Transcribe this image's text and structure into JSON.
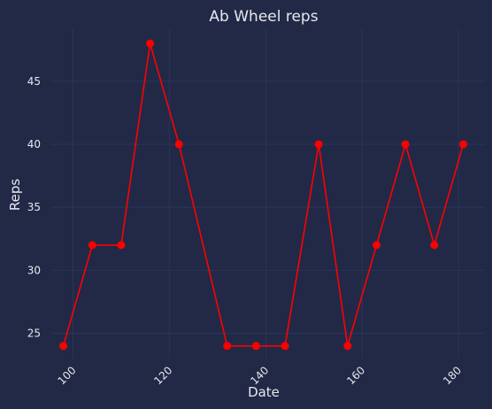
{
  "chart_data": {
    "type": "line",
    "title": "Ab Wheel reps",
    "xlabel": "Date",
    "ylabel": "Reps",
    "xlim": [
      95.5,
      185.5
    ],
    "ylim": [
      23,
      49.2
    ],
    "x_ticks": [
      100,
      120,
      140,
      160,
      180
    ],
    "y_ticks": [
      25,
      30,
      35,
      40,
      45
    ],
    "grid": true,
    "series": [
      {
        "color": "#ff0000",
        "x": [
          98,
          104,
          110,
          116,
          122,
          132,
          138,
          144,
          151,
          157,
          163,
          169,
          175,
          181
        ],
        "y": [
          24,
          32,
          32,
          48,
          40,
          24,
          24,
          24,
          40,
          24,
          32,
          40,
          32,
          40
        ]
      }
    ]
  },
  "colors": {
    "background": "#212946",
    "grid": "#2a3459",
    "text": "#e6e8ef",
    "series": "#ff0000"
  }
}
